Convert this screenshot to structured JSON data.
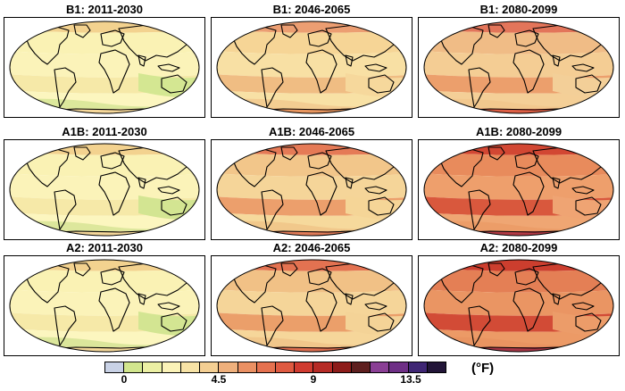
{
  "panels": [
    {
      "label": "B1: 2011-2030",
      "fills": [
        "#f3d28f",
        "#faf2b4",
        "#fbf3b9",
        "#f6e9a8",
        "#fcf6bf",
        "#dce89c",
        "#d4e792",
        "#f6d89a"
      ]
    },
    {
      "label": "B1: 2046-2065",
      "fills": [
        "#ec9e72",
        "#f6d596",
        "#f8e0a4",
        "#f0bd83",
        "#f8e1a5",
        "#f3cd92",
        "#f6d89c",
        "#e8965f"
      ]
    },
    {
      "label": "B1: 2080-2099",
      "fills": [
        "#e3755a",
        "#f0bc86",
        "#f4cd94",
        "#ec9f6c",
        "#f4cf97",
        "#f2c88e",
        "#f3cf98",
        "#dd5f45"
      ]
    },
    {
      "label": "A1B: 2011-2030",
      "fills": [
        "#f3d28f",
        "#faf2b4",
        "#fbf3b9",
        "#f6e9a8",
        "#fcf6bf",
        "#dde79c",
        "#d3e592",
        "#f4d699"
      ]
    },
    {
      "label": "A1B: 2046-2065",
      "fills": [
        "#e57a56",
        "#f2c68a",
        "#f5d599",
        "#ec9f6c",
        "#f6d99c",
        "#f1c88b",
        "#f5d597",
        "#e07b58"
      ]
    },
    {
      "label": "A1B: 2080-2099",
      "fills": [
        "#d24733",
        "#e88b5c",
        "#ee9f6c",
        "#d9583d",
        "#efa673",
        "#ec9d68",
        "#efa473",
        "#b23a45"
      ]
    },
    {
      "label": "A2: 2011-2030",
      "fills": [
        "#f3d28f",
        "#faf2b4",
        "#fbf3b9",
        "#f6e9a8",
        "#fcf6bf",
        "#dbe69b",
        "#d3e592",
        "#f5d89a"
      ]
    },
    {
      "label": "A2: 2046-2065",
      "fills": [
        "#e37251",
        "#f1c186",
        "#f5d599",
        "#eb9f6a",
        "#f6d69a",
        "#f1c78b",
        "#f4d397",
        "#df6f50"
      ]
    },
    {
      "label": "A2: 2080-2099",
      "fills": [
        "#cc3e2e",
        "#e47f55",
        "#ea9563",
        "#d24b36",
        "#ec9a66",
        "#e99461",
        "#ec9c69",
        "#a53646"
      ]
    }
  ],
  "colorbar": {
    "colors": [
      "#c9d2e6",
      "#d2e68e",
      "#ecf0a4",
      "#fbf3b8",
      "#f7e3a6",
      "#f4cf93",
      "#efb07c",
      "#ea9063",
      "#e5714f",
      "#df5a41",
      "#d03b30",
      "#b62b26",
      "#8d1c1a",
      "#5e1f1f",
      "#8a3f95",
      "#6e2f86",
      "#3f2674",
      "#221538"
    ],
    "tick_labels": [
      "0",
      "4.5",
      "9",
      "13.5"
    ],
    "unit": "(°F)"
  }
}
